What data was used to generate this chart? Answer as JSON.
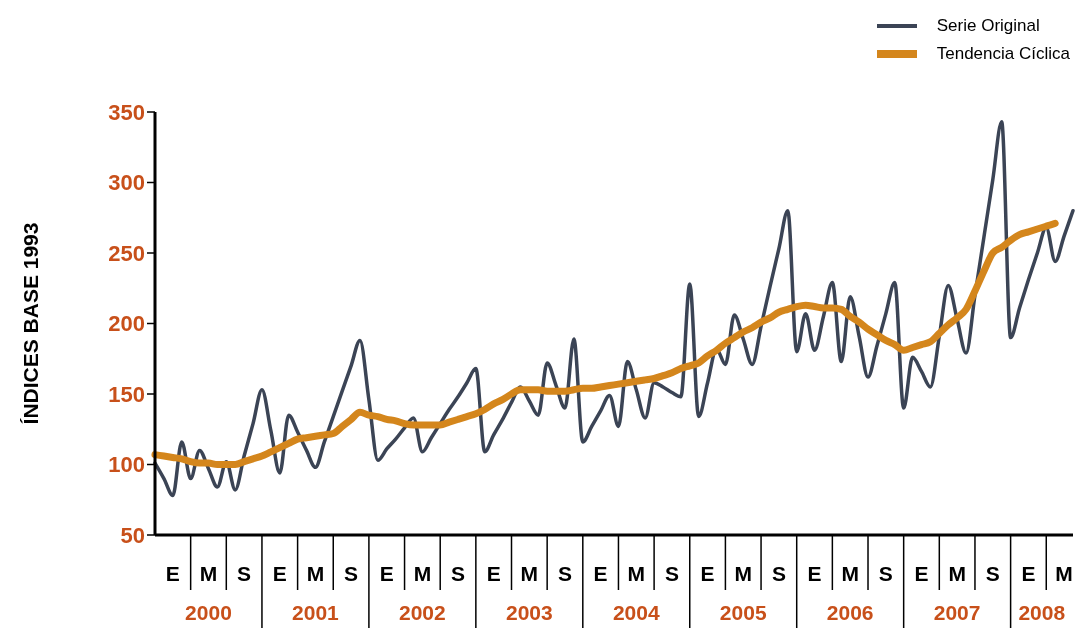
{
  "chart_data": {
    "type": "line",
    "ylabel": "ÍNDICES BASE 1993",
    "categories": [
      null,
      null,
      "E",
      null,
      null,
      null,
      "M",
      null,
      null,
      null,
      "S",
      null,
      null,
      null,
      "E",
      null,
      null,
      null,
      "M",
      null,
      null,
      null,
      "S",
      null,
      null,
      null,
      "E",
      null,
      null,
      null,
      "M",
      null,
      null,
      null,
      "S",
      null,
      null,
      null,
      "E",
      null,
      null,
      null,
      "M",
      null,
      null,
      null,
      "S",
      null,
      null,
      null,
      "E",
      null,
      null,
      null,
      "M",
      null,
      null,
      null,
      "S",
      null,
      null,
      null,
      "E",
      null,
      null,
      null,
      "M",
      null,
      null,
      null,
      "S",
      null,
      null,
      null,
      "E",
      null,
      null,
      null,
      "M",
      null,
      null,
      null,
      "S",
      null,
      null,
      null,
      "E",
      null,
      null,
      null,
      "M",
      null,
      null,
      null,
      "S",
      null,
      null,
      null,
      "E",
      null,
      null,
      null,
      "M",
      null
    ],
    "series": [
      {
        "name": "Serie Original",
        "color": "#3b4455",
        "values": [
          101,
          90,
          78,
          116,
          90,
          110,
          97,
          84,
          102,
          82,
          106,
          129,
          153,
          124,
          94,
          135,
          123,
          110,
          98,
          116,
          134,
          152,
          170,
          188,
          146,
          103,
          111,
          118,
          126,
          133,
          109,
          119,
          129,
          139,
          148,
          158,
          168,
          109,
          121,
          132,
          144,
          155,
          145,
          135,
          172,
          156,
          140,
          189,
          116,
          127,
          138,
          149,
          127,
          173,
          153,
          133,
          158,
          155,
          151,
          148,
          228,
          134,
          158,
          182,
          171,
          206,
          189,
          171,
          198,
          226,
          253,
          280,
          180,
          207,
          181,
          205,
          229,
          173,
          219,
          191,
          162,
          184,
          207,
          229,
          140,
          176,
          166,
          155,
          191,
          227,
          203,
          179,
          220,
          261,
          302,
          343,
          190,
          211,
          231,
          250,
          268,
          244,
          262,
          280
        ]
      },
      {
        "name": "Tendencia Cíclica",
        "color": "#d4861c",
        "values": [
          107,
          106,
          105,
          104,
          102,
          101,
          101,
          100,
          100,
          100,
          102,
          104,
          106,
          109,
          112,
          115,
          118,
          119,
          120,
          121,
          122,
          127,
          132,
          137,
          135,
          134,
          132,
          131,
          129,
          128,
          128,
          128,
          128,
          130,
          132,
          134,
          136,
          139,
          143,
          146,
          150,
          153,
          153,
          153,
          152,
          152,
          152,
          153,
          154,
          154,
          155,
          156,
          157,
          158,
          159,
          160,
          161,
          163,
          165,
          168,
          170,
          172,
          177,
          181,
          186,
          190,
          194,
          197,
          201,
          204,
          208,
          210,
          212,
          213,
          212,
          211,
          211,
          210,
          205,
          201,
          196,
          192,
          188,
          185,
          181,
          183,
          185,
          187,
          193,
          199,
          204,
          210,
          223,
          237,
          250,
          254,
          259,
          263,
          265,
          267,
          269,
          271,
          null,
          null
        ]
      }
    ],
    "ylim": [
      50,
      350
    ],
    "yticks": [
      50,
      100,
      150,
      200,
      250,
      300,
      350
    ],
    "annotations": [
      "2000",
      "2001",
      "2002",
      "2003",
      "2004",
      "2005",
      "2006",
      "2007",
      "2008"
    ],
    "legend": "top right"
  }
}
